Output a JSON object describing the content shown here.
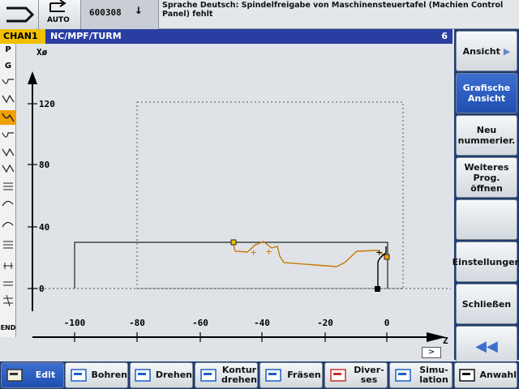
{
  "header": {
    "auto_label": "AUTO",
    "program_number": "600308",
    "alarm_text": "Sprache Deutsch: Spindelfreigabe von Maschinensteuertafel (Machien Control Panel) fehlt"
  },
  "channel": {
    "name": "CHAN1",
    "path": "NC/MPF/TURM",
    "number": "6"
  },
  "left_column": {
    "items": [
      "P",
      "G",
      "END"
    ]
  },
  "graphic": {
    "x_axis_label": "Z",
    "y_axis_label": "Xø",
    "x_ticks": [
      "-100",
      "-80",
      "-60",
      "-40",
      "-20",
      "0"
    ],
    "y_ticks": [
      "120",
      "80",
      "40",
      "0"
    ]
  },
  "side_keys": [
    {
      "label": "Ansicht",
      "active": false
    },
    {
      "label": "Grafische Ansicht",
      "active": true
    },
    {
      "label": "Neu nummerier.",
      "active": false
    },
    {
      "label": "Weiteres Prog. öffnen",
      "active": false
    },
    {
      "label": "",
      "active": false
    },
    {
      "label": "Einstellungen",
      "active": false
    },
    {
      "label": "Schließen",
      "active": false
    },
    {
      "label": "",
      "active": false
    }
  ],
  "bottom_keys": [
    {
      "label": "Edit",
      "active": true
    },
    {
      "label": "Bohren",
      "active": false
    },
    {
      "label": "Drehen",
      "active": false
    },
    {
      "label": "Kontur drehen",
      "active": false
    },
    {
      "label": "Fräsen",
      "active": false
    },
    {
      "label": "Diver- ses",
      "active": false
    },
    {
      "label": "Simu- lation",
      "active": false
    },
    {
      "label": "Anwahl",
      "active": false
    }
  ],
  "colors": {
    "channel_bar": "#2a3da0",
    "channel_tag": "#f0c000",
    "contour_orange": "#c87800",
    "softkey_active": "#2f5fc4"
  }
}
